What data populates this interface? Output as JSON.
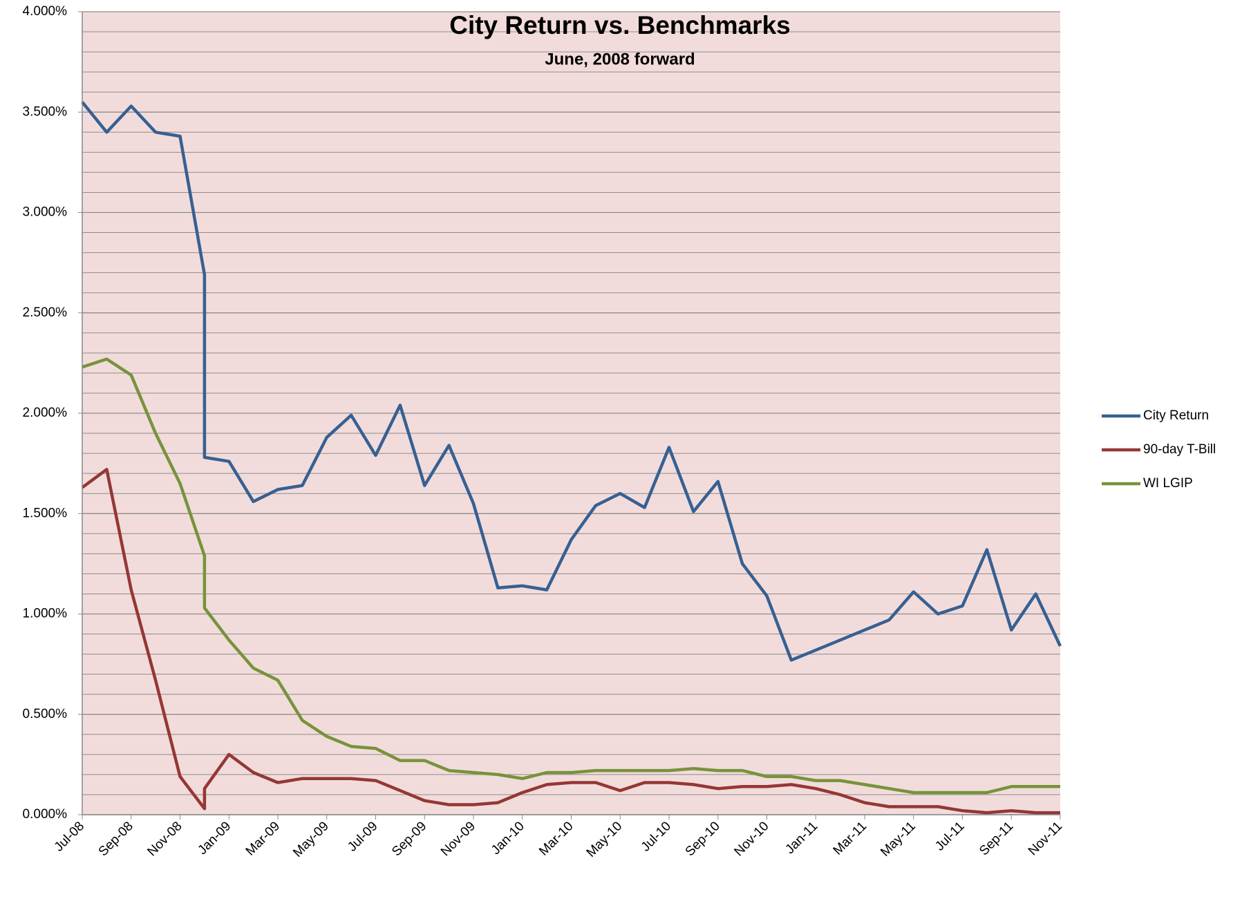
{
  "chart_data": {
    "type": "line",
    "title": "City Return vs. Benchmarks",
    "subtitle": "June, 2008 forward",
    "x": [
      "Jul-08",
      "Aug-08",
      "Sep-08",
      "Oct-08",
      "Nov-08",
      "Dec-08",
      "Dec-08",
      "Jan-09",
      "Feb-09",
      "Mar-09",
      "Apr-09",
      "May-09",
      "Jun-09",
      "Jul-09",
      "Aug-09",
      "Sep-09",
      "Oct-09",
      "Nov-09",
      "Dec-09",
      "Jan-10",
      "Feb-10",
      "Mar-10",
      "Apr-10",
      "May-10",
      "Jun-10",
      "Jul-10",
      "Aug-10",
      "Sep-10",
      "Oct-10",
      "Nov-10",
      "Dec-10",
      "Jan-11",
      "Feb-11",
      "Mar-11",
      "Apr-11",
      "May-11",
      "Jun-11",
      "Jul-11",
      "Aug-11",
      "Sep-11",
      "Oct-11",
      "Nov-11"
    ],
    "series": [
      {
        "name": "City Return",
        "color": "#376092",
        "values": [
          3.55,
          3.4,
          3.53,
          3.4,
          3.38,
          2.69,
          1.78,
          1.76,
          1.56,
          1.62,
          1.64,
          1.88,
          1.99,
          1.79,
          2.04,
          1.64,
          1.84,
          1.55,
          1.13,
          1.14,
          1.12,
          1.37,
          1.54,
          1.6,
          1.53,
          1.83,
          1.51,
          1.66,
          1.25,
          1.09,
          0.77,
          0.82,
          0.87,
          0.92,
          0.97,
          1.11,
          1.0,
          1.04,
          1.32,
          0.92,
          1.1,
          0.84
        ]
      },
      {
        "name": "90-day T-Bill",
        "color": "#953735",
        "values": [
          1.63,
          1.72,
          1.12,
          0.67,
          0.19,
          0.03,
          0.13,
          0.3,
          0.21,
          0.16,
          0.18,
          0.18,
          0.18,
          0.17,
          0.12,
          0.07,
          0.05,
          0.05,
          0.06,
          0.11,
          0.15,
          0.16,
          0.16,
          0.12,
          0.16,
          0.16,
          0.15,
          0.13,
          0.14,
          0.14,
          0.15,
          0.13,
          0.1,
          0.06,
          0.04,
          0.04,
          0.04,
          0.02,
          0.01,
          0.02,
          0.01,
          0.01
        ]
      },
      {
        "name": "WI LGIP",
        "color": "#77933c",
        "values": [
          2.23,
          2.27,
          2.19,
          1.9,
          1.65,
          1.29,
          1.03,
          0.87,
          0.73,
          0.67,
          0.47,
          0.39,
          0.34,
          0.33,
          0.27,
          0.27,
          0.22,
          0.21,
          0.2,
          0.18,
          0.21,
          0.21,
          0.22,
          0.22,
          0.22,
          0.22,
          0.23,
          0.22,
          0.22,
          0.19,
          0.19,
          0.17,
          0.17,
          0.15,
          0.13,
          0.11,
          0.11,
          0.11,
          0.11,
          0.14,
          0.14,
          0.14
        ]
      }
    ],
    "xlim": [
      "Jul-08",
      "Nov-11"
    ],
    "xticks": [
      "Jul-08",
      "Sep-08",
      "Nov-08",
      "Jan-09",
      "Mar-09",
      "May-09",
      "Jul-09",
      "Sep-09",
      "Nov-09",
      "Jan-10",
      "Mar-10",
      "May-10",
      "Jul-10",
      "Sep-10",
      "Nov-10",
      "Jan-11",
      "Mar-11",
      "May-11",
      "Jul-11",
      "Sep-11",
      "Nov-11"
    ],
    "ylim": [
      0,
      4
    ],
    "yticks": [
      {
        "value": 0,
        "label": "0.000%"
      },
      {
        "value": 0.5,
        "label": "0.500%"
      },
      {
        "value": 1,
        "label": "1.000%"
      },
      {
        "value": 1.5,
        "label": "1.500%"
      },
      {
        "value": 2,
        "label": "2.000%"
      },
      {
        "value": 2.5,
        "label": "2.500%"
      },
      {
        "value": 3,
        "label": "3.000%"
      },
      {
        "value": 3.5,
        "label": "3.500%"
      },
      {
        "value": 4,
        "label": "4.000%"
      }
    ],
    "minor_grid_step": 0.1,
    "grid": true,
    "legend": "right",
    "plot_background": "#f2dcdb"
  }
}
